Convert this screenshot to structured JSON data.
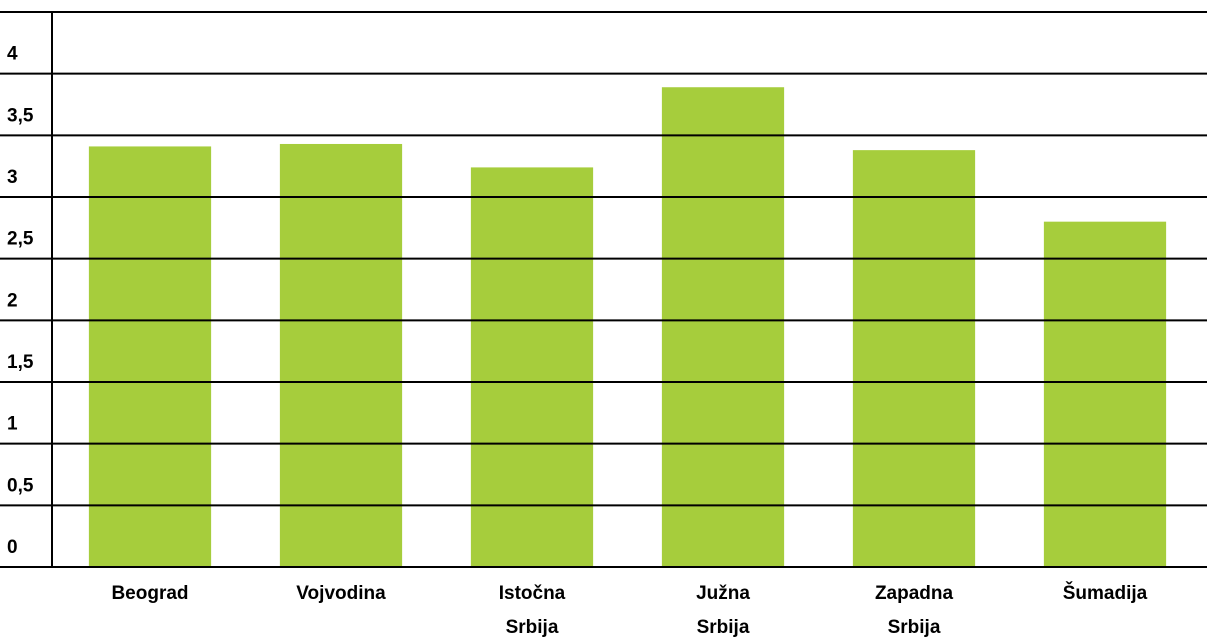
{
  "chart_data": {
    "type": "bar",
    "categories": [
      "Beograd",
      "Vojvodina",
      "Istočna Srbija",
      "Južna Srbija",
      "Zapadna Srbija",
      "Šumadija"
    ],
    "values": [
      3.41,
      3.43,
      3.24,
      3.89,
      3.38,
      2.8
    ],
    "color": "#a6cd3c",
    "ylim": [
      0,
      4.5
    ],
    "yticks": [
      0,
      {
        "value": 0.5,
        "label": "0,5"
      },
      1,
      {
        "value": 1.5,
        "label": "1,5"
      },
      2,
      {
        "value": 2.5,
        "label": "2,5"
      },
      3,
      {
        "value": 3.5,
        "label": "3,5"
      },
      4
    ],
    "grid": true
  }
}
